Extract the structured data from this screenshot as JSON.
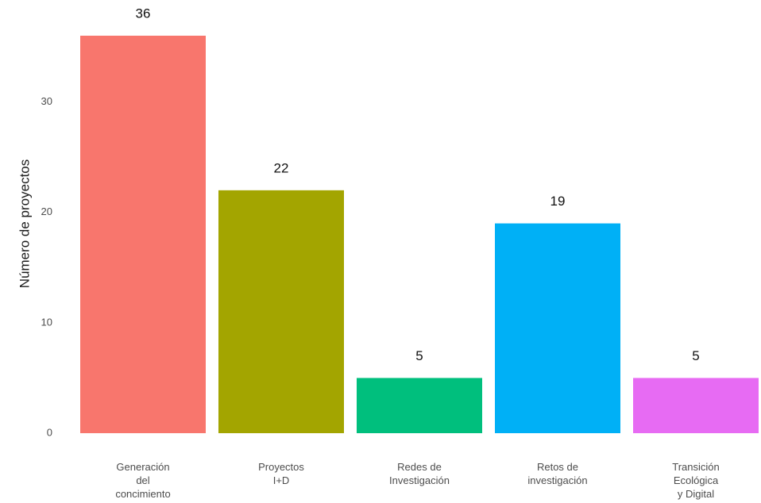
{
  "chart_data": {
    "type": "bar",
    "y_label": "Número de proyectos",
    "categories": [
      "Generación\ndel\nconcimiento",
      "Proyectos\nI+D",
      "Redes de\nInvestigación",
      "Retos de\ninvestigación",
      "Transición\nEcológica\ny Digital"
    ],
    "values": [
      36,
      22,
      5,
      19,
      5
    ],
    "colors": [
      "#F8766D",
      "#A3A500",
      "#00BF7D",
      "#00B0F6",
      "#E76BF3"
    ],
    "ylim": [
      0,
      36
    ],
    "yticks": [
      0,
      10,
      20,
      30
    ],
    "grid": false
  }
}
